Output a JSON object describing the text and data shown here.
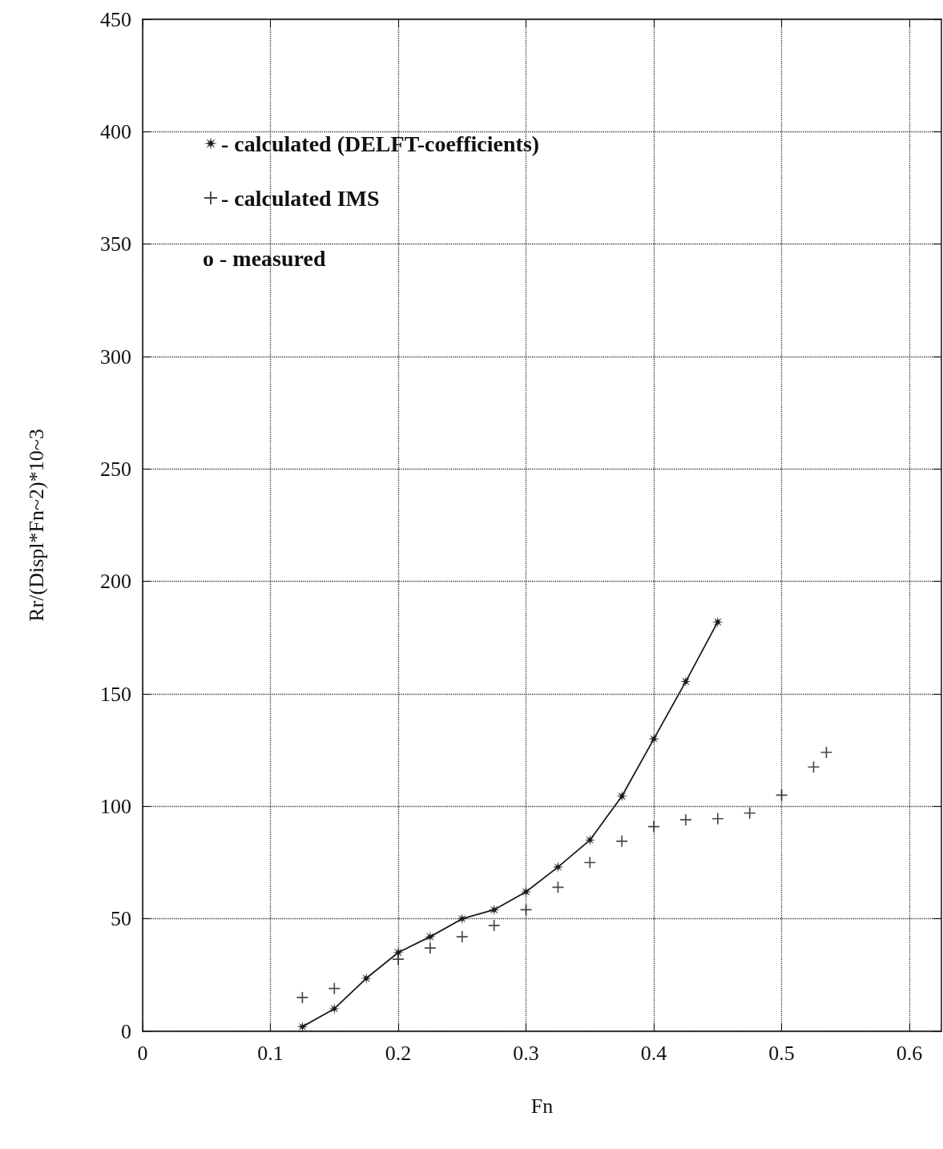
{
  "chart_data": {
    "type": "scatter",
    "xlabel": "Fn",
    "ylabel": "Rr/(Displ*Fn~2)*10~3",
    "xlim": [
      0,
      0.625
    ],
    "xticks": [
      0,
      0.1,
      0.2,
      0.3,
      0.4,
      0.5,
      0.6
    ],
    "ylim": [
      0,
      450
    ],
    "yticks": [
      0,
      50,
      100,
      150,
      200,
      250,
      300,
      350,
      400,
      450
    ],
    "grid": true,
    "legend": "top left",
    "series": [
      {
        "name": "- calculated (DELFT-coefficients)",
        "type": "line",
        "marker": "star",
        "line_style": "solid",
        "color": "#1a1a1a",
        "x": [
          0.125,
          0.15,
          0.175,
          0.2,
          0.225,
          0.25,
          0.275,
          0.3,
          0.325,
          0.35,
          0.375,
          0.4,
          0.425,
          0.45
        ],
        "values": [
          2,
          10,
          23.5,
          35,
          42,
          50,
          54,
          62,
          73,
          85,
          104.5,
          130,
          155.5,
          182
        ]
      },
      {
        "name": "- calculated IMS",
        "marker": "cross",
        "color": "#1a1a1a",
        "x": [
          0.125,
          0.15,
          0.2,
          0.225,
          0.25,
          0.275,
          0.3,
          0.325,
          0.35,
          0.375,
          0.4,
          0.425,
          0.45,
          0.475,
          0.5,
          0.525,
          0.535
        ],
        "values": [
          15,
          19,
          32,
          37,
          42,
          47,
          54,
          64,
          75,
          84.5,
          91,
          94,
          94.5,
          97,
          105,
          117.5,
          124
        ]
      }
    ],
    "annotations": [
      "o - measured"
    ]
  }
}
